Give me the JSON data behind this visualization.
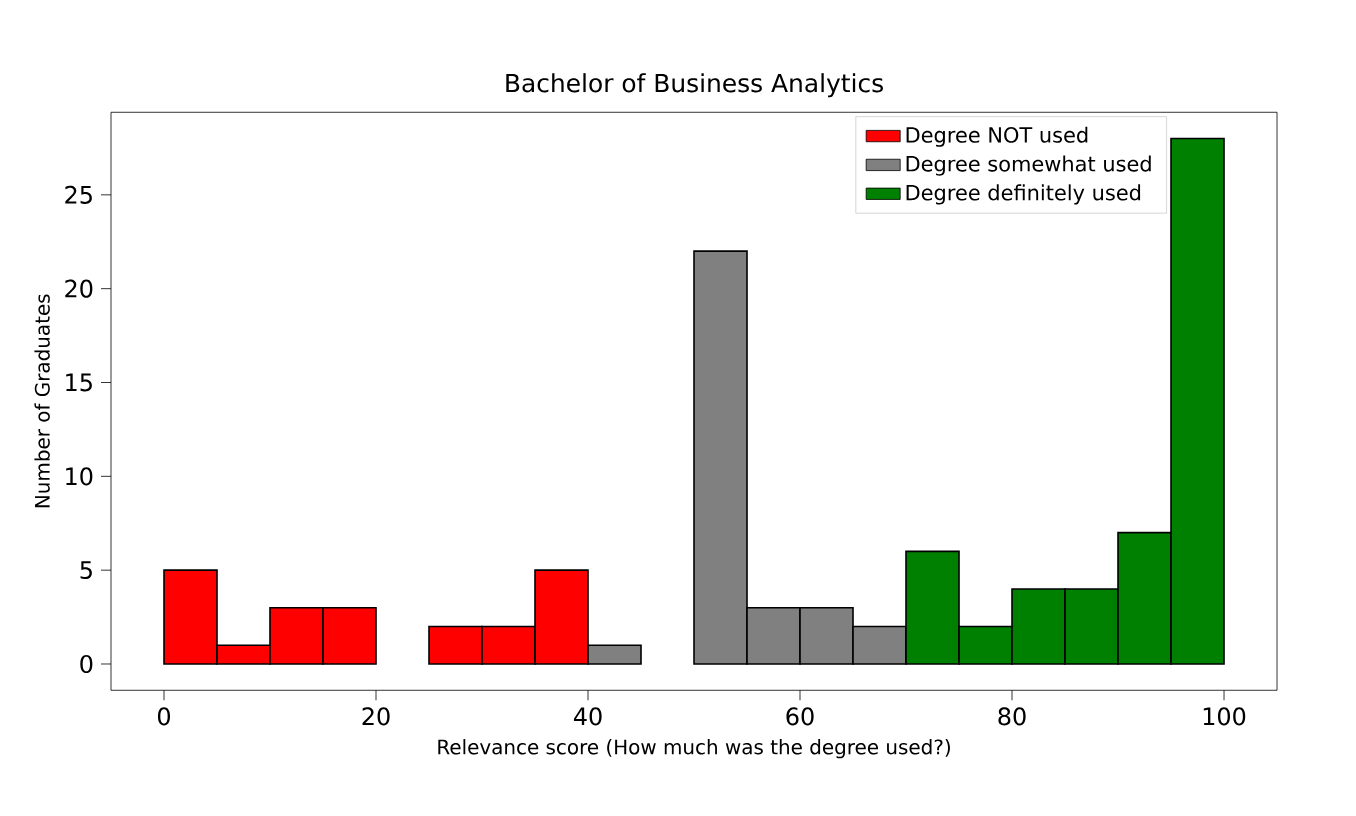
{
  "chart_data": {
    "type": "histogram",
    "title": "Bachelor of Business Analytics",
    "xlabel": "Relevance score (How much was the degree used?)",
    "ylabel": "Number of Graduates",
    "bins": [
      0,
      5,
      10,
      15,
      20,
      25,
      30,
      35,
      40,
      45,
      50,
      55,
      60,
      65,
      70,
      75,
      80,
      85,
      90,
      95,
      100
    ],
    "series": [
      {
        "name": "Degree NOT used",
        "color": "#ff0000",
        "values": [
          5,
          1,
          3,
          3,
          0,
          2,
          2,
          5,
          null,
          null,
          null,
          null,
          null,
          null,
          null,
          null,
          null,
          null,
          null,
          null
        ]
      },
      {
        "name": "Degree somewhat used",
        "color": "#808080",
        "values": [
          null,
          null,
          null,
          null,
          null,
          null,
          null,
          null,
          1,
          0,
          22,
          3,
          3,
          2,
          null,
          null,
          null,
          null,
          null,
          null
        ]
      },
      {
        "name": "Degree definitely used",
        "color": "#008000",
        "values": [
          null,
          null,
          null,
          null,
          null,
          null,
          null,
          null,
          null,
          null,
          null,
          null,
          null,
          null,
          6,
          2,
          4,
          4,
          7,
          28
        ]
      }
    ],
    "xlim": [
      -5,
      105
    ],
    "ylim": [
      -1.4,
      29.4
    ],
    "xticks": [
      0,
      20,
      40,
      60,
      80,
      100
    ],
    "yticks": [
      0,
      5,
      10,
      15,
      20,
      25
    ],
    "legend": "top right"
  }
}
